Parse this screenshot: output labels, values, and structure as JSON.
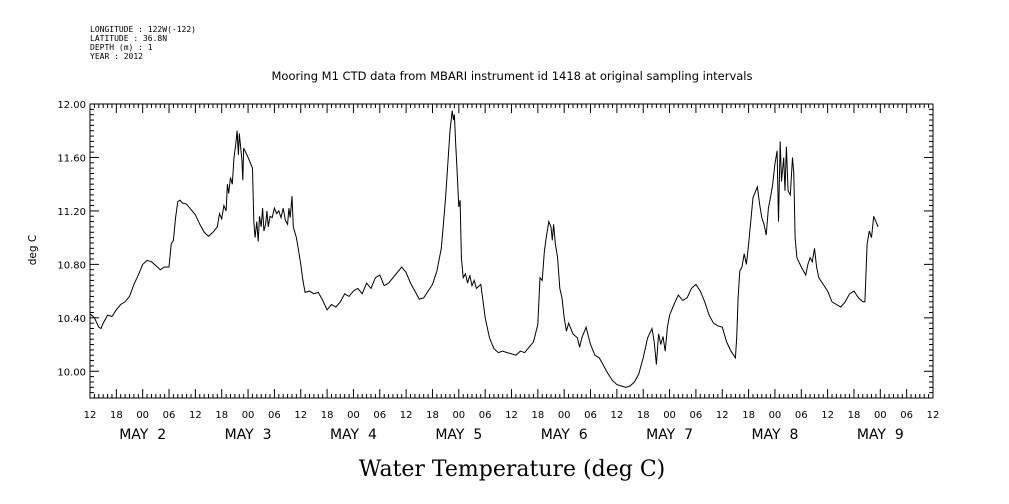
{
  "header": {
    "longitude": "LONGITUDE : 122W(-122)",
    "latitude": "LATITUDE : 36.8N",
    "depth": "DEPTH (m) : 1",
    "year": "YEAR : 2012"
  },
  "chart_data": {
    "type": "line",
    "title": "Mooring M1 CTD data from MBARI instrument id 1418 at original sampling intervals",
    "xlabel": "Water Temperature (deg C)",
    "ylabel": "deg C",
    "x_unit": "hours since May 2 00:00 (2012)",
    "xlim": [
      -12,
      180
    ],
    "ylim": [
      9.8,
      12.0
    ],
    "yticks": [
      10.0,
      10.4,
      10.8,
      11.2,
      11.6,
      12.0
    ],
    "ytick_labels": [
      "10.00",
      "10.40",
      "10.80",
      "11.20",
      "11.60",
      "12.00"
    ],
    "xtick_labels": [
      "12",
      "18",
      "00",
      "06",
      "12",
      "18",
      "00",
      "06",
      "12",
      "18",
      "00",
      "06",
      "12",
      "18",
      "00",
      "06",
      "12",
      "18",
      "00",
      "06",
      "12",
      "18",
      "00",
      "06",
      "12",
      "18",
      "00",
      "06",
      "12",
      "18",
      "00",
      "06",
      "12"
    ],
    "day_labels": [
      {
        "text": "MAY  2",
        "hour": 0
      },
      {
        "text": "MAY  3",
        "hour": 24
      },
      {
        "text": "MAY  4",
        "hour": 48
      },
      {
        "text": "MAY  5",
        "hour": 72
      },
      {
        "text": "MAY  6",
        "hour": 96
      },
      {
        "text": "MAY  7",
        "hour": 120
      },
      {
        "text": "MAY  8",
        "hour": 144
      },
      {
        "text": "MAY  9",
        "hour": 168
      }
    ],
    "series": [
      {
        "color": "#000000",
        "points": [
          [
            -12,
            10.43
          ],
          [
            -11,
            10.4
          ],
          [
            -10,
            10.33
          ],
          [
            -9.5,
            10.32
          ],
          [
            -9,
            10.36
          ],
          [
            -8,
            10.42
          ],
          [
            -7,
            10.41
          ],
          [
            -6,
            10.46
          ],
          [
            -5,
            10.5
          ],
          [
            -4,
            10.52
          ],
          [
            -3,
            10.56
          ],
          [
            -2,
            10.65
          ],
          [
            -1,
            10.72
          ],
          [
            0,
            10.8
          ],
          [
            1,
            10.83
          ],
          [
            2,
            10.82
          ],
          [
            3,
            10.79
          ],
          [
            4,
            10.76
          ],
          [
            5,
            10.78
          ],
          [
            6,
            10.78
          ],
          [
            6.5,
            10.95
          ],
          [
            7,
            10.98
          ],
          [
            7.5,
            11.15
          ],
          [
            8,
            11.27
          ],
          [
            8.5,
            11.28
          ],
          [
            9,
            11.26
          ],
          [
            10,
            11.25
          ],
          [
            11,
            11.21
          ],
          [
            12,
            11.17
          ],
          [
            13,
            11.1
          ],
          [
            14,
            11.04
          ],
          [
            15,
            11.01
          ],
          [
            16,
            11.04
          ],
          [
            17,
            11.08
          ],
          [
            17.5,
            11.18
          ],
          [
            18,
            11.14
          ],
          [
            18.5,
            11.24
          ],
          [
            19,
            11.2
          ],
          [
            19.3,
            11.4
          ],
          [
            19.6,
            11.33
          ],
          [
            20,
            11.45
          ],
          [
            20.4,
            11.4
          ],
          [
            20.8,
            11.6
          ],
          [
            21.2,
            11.7
          ],
          [
            21.5,
            11.8
          ],
          [
            21.8,
            11.62
          ],
          [
            22,
            11.78
          ],
          [
            22.3,
            11.68
          ],
          [
            22.6,
            11.58
          ],
          [
            22.8,
            11.43
          ],
          [
            23,
            11.67
          ],
          [
            24,
            11.6
          ],
          [
            25,
            11.52
          ],
          [
            25.3,
            11.12
          ],
          [
            25.6,
            11.0
          ],
          [
            26,
            11.12
          ],
          [
            26.3,
            10.97
          ],
          [
            26.6,
            11.16
          ],
          [
            27,
            11.08
          ],
          [
            27.3,
            11.22
          ],
          [
            27.6,
            11.05
          ],
          [
            28,
            11.1
          ],
          [
            28.3,
            11.2
          ],
          [
            28.6,
            11.08
          ],
          [
            29,
            11.16
          ],
          [
            29.5,
            11.15
          ],
          [
            30,
            11.22
          ],
          [
            30.5,
            11.18
          ],
          [
            31,
            11.2
          ],
          [
            31.5,
            11.15
          ],
          [
            32,
            11.22
          ],
          [
            32.5,
            11.13
          ],
          [
            33,
            11.1
          ],
          [
            33.3,
            11.22
          ],
          [
            33.6,
            11.15
          ],
          [
            34,
            11.31
          ],
          [
            34.3,
            11.08
          ],
          [
            35,
            11.0
          ],
          [
            36,
            10.8
          ],
          [
            36.5,
            10.68
          ],
          [
            37,
            10.59
          ],
          [
            38,
            10.6
          ],
          [
            39,
            10.58
          ],
          [
            40,
            10.59
          ],
          [
            41,
            10.53
          ],
          [
            42,
            10.46
          ],
          [
            43,
            10.5
          ],
          [
            44,
            10.48
          ],
          [
            45,
            10.52
          ],
          [
            46,
            10.58
          ],
          [
            47,
            10.56
          ],
          [
            48,
            10.6
          ],
          [
            49,
            10.62
          ],
          [
            50,
            10.58
          ],
          [
            51,
            10.66
          ],
          [
            52,
            10.62
          ],
          [
            53,
            10.7
          ],
          [
            54,
            10.72
          ],
          [
            55,
            10.64
          ],
          [
            56,
            10.66
          ],
          [
            57,
            10.7
          ],
          [
            58,
            10.74
          ],
          [
            59,
            10.78
          ],
          [
            60,
            10.74
          ],
          [
            61,
            10.66
          ],
          [
            62,
            10.6
          ],
          [
            63,
            10.54
          ],
          [
            64,
            10.55
          ],
          [
            65,
            10.6
          ],
          [
            66,
            10.65
          ],
          [
            67,
            10.75
          ],
          [
            68,
            10.92
          ],
          [
            68.5,
            11.1
          ],
          [
            69,
            11.3
          ],
          [
            69.5,
            11.55
          ],
          [
            70,
            11.8
          ],
          [
            70.5,
            11.95
          ],
          [
            70.8,
            11.88
          ],
          [
            71,
            11.92
          ],
          [
            71.3,
            11.7
          ],
          [
            71.6,
            11.5
          ],
          [
            72,
            11.23
          ],
          [
            72.3,
            11.28
          ],
          [
            72.6,
            10.85
          ],
          [
            73,
            10.7
          ],
          [
            73.5,
            10.73
          ],
          [
            74,
            10.66
          ],
          [
            74.5,
            10.72
          ],
          [
            75,
            10.64
          ],
          [
            75.5,
            10.68
          ],
          [
            76,
            10.62
          ],
          [
            77,
            10.65
          ],
          [
            78,
            10.4
          ],
          [
            79,
            10.25
          ],
          [
            80,
            10.17
          ],
          [
            81,
            10.14
          ],
          [
            82,
            10.15
          ],
          [
            83,
            10.14
          ],
          [
            84,
            10.13
          ],
          [
            85,
            10.12
          ],
          [
            86,
            10.15
          ],
          [
            87,
            10.14
          ],
          [
            88,
            10.18
          ],
          [
            89,
            10.22
          ],
          [
            90,
            10.35
          ],
          [
            90.5,
            10.7
          ],
          [
            91,
            10.68
          ],
          [
            91.5,
            10.9
          ],
          [
            92,
            11.02
          ],
          [
            92.5,
            11.12
          ],
          [
            93,
            11.08
          ],
          [
            93.3,
            10.98
          ],
          [
            93.6,
            11.1
          ],
          [
            94,
            10.95
          ],
          [
            94.5,
            10.85
          ],
          [
            95,
            10.62
          ],
          [
            95.5,
            10.55
          ],
          [
            96,
            10.4
          ],
          [
            96.5,
            10.3
          ],
          [
            97,
            10.36
          ],
          [
            98,
            10.28
          ],
          [
            99,
            10.25
          ],
          [
            99.5,
            10.18
          ],
          [
            100,
            10.25
          ],
          [
            101,
            10.33
          ],
          [
            102,
            10.2
          ],
          [
            103,
            10.12
          ],
          [
            104,
            10.1
          ],
          [
            105,
            10.04
          ],
          [
            106,
            9.98
          ],
          [
            107,
            9.93
          ],
          [
            108,
            9.9
          ],
          [
            109,
            9.89
          ],
          [
            110,
            9.88
          ],
          [
            111,
            9.89
          ],
          [
            112,
            9.92
          ],
          [
            113,
            9.98
          ],
          [
            114,
            10.1
          ],
          [
            115,
            10.25
          ],
          [
            116,
            10.32
          ],
          [
            116.5,
            10.22
          ],
          [
            117,
            10.05
          ],
          [
            117.5,
            10.28
          ],
          [
            118,
            10.2
          ],
          [
            118.5,
            10.26
          ],
          [
            119,
            10.15
          ],
          [
            119.5,
            10.33
          ],
          [
            120,
            10.42
          ],
          [
            121,
            10.5
          ],
          [
            122,
            10.57
          ],
          [
            123,
            10.53
          ],
          [
            124,
            10.55
          ],
          [
            125,
            10.62
          ],
          [
            126,
            10.65
          ],
          [
            127,
            10.6
          ],
          [
            128,
            10.52
          ],
          [
            129,
            10.42
          ],
          [
            130,
            10.36
          ],
          [
            131,
            10.34
          ],
          [
            132,
            10.33
          ],
          [
            133,
            10.22
          ],
          [
            134,
            10.15
          ],
          [
            135,
            10.1
          ],
          [
            135.3,
            10.25
          ],
          [
            135.6,
            10.55
          ],
          [
            136,
            10.75
          ],
          [
            136.5,
            10.78
          ],
          [
            137,
            10.88
          ],
          [
            137.5,
            10.8
          ],
          [
            138,
            10.95
          ],
          [
            139,
            11.3
          ],
          [
            140,
            11.38
          ],
          [
            140.5,
            11.25
          ],
          [
            141,
            11.15
          ],
          [
            141.5,
            11.1
          ],
          [
            142,
            11.02
          ],
          [
            142.5,
            11.22
          ],
          [
            143,
            11.3
          ],
          [
            143.5,
            11.4
          ],
          [
            144,
            11.55
          ],
          [
            144.5,
            11.65
          ],
          [
            144.8,
            11.12
          ],
          [
            145.2,
            11.72
          ],
          [
            145.5,
            11.42
          ],
          [
            146,
            11.6
          ],
          [
            146.3,
            11.35
          ],
          [
            146.6,
            11.68
          ],
          [
            147,
            11.35
          ],
          [
            147.5,
            11.32
          ],
          [
            148,
            11.6
          ],
          [
            148.3,
            11.48
          ],
          [
            148.6,
            11.0
          ],
          [
            149,
            10.85
          ],
          [
            150,
            10.78
          ],
          [
            151,
            10.72
          ],
          [
            151.5,
            10.8
          ],
          [
            152,
            10.85
          ],
          [
            152.5,
            10.82
          ],
          [
            153,
            10.92
          ],
          [
            153.5,
            10.78
          ],
          [
            154,
            10.7
          ],
          [
            155,
            10.65
          ],
          [
            156,
            10.6
          ],
          [
            157,
            10.52
          ],
          [
            158,
            10.5
          ],
          [
            159,
            10.48
          ],
          [
            160,
            10.52
          ],
          [
            161,
            10.58
          ],
          [
            162,
            10.6
          ],
          [
            163,
            10.55
          ],
          [
            164,
            10.52
          ],
          [
            164.5,
            10.52
          ],
          [
            165,
            10.95
          ],
          [
            165.5,
            11.05
          ],
          [
            166,
            11.0
          ],
          [
            166.5,
            11.16
          ],
          [
            167,
            11.12
          ],
          [
            167.5,
            11.08
          ]
        ]
      }
    ]
  }
}
